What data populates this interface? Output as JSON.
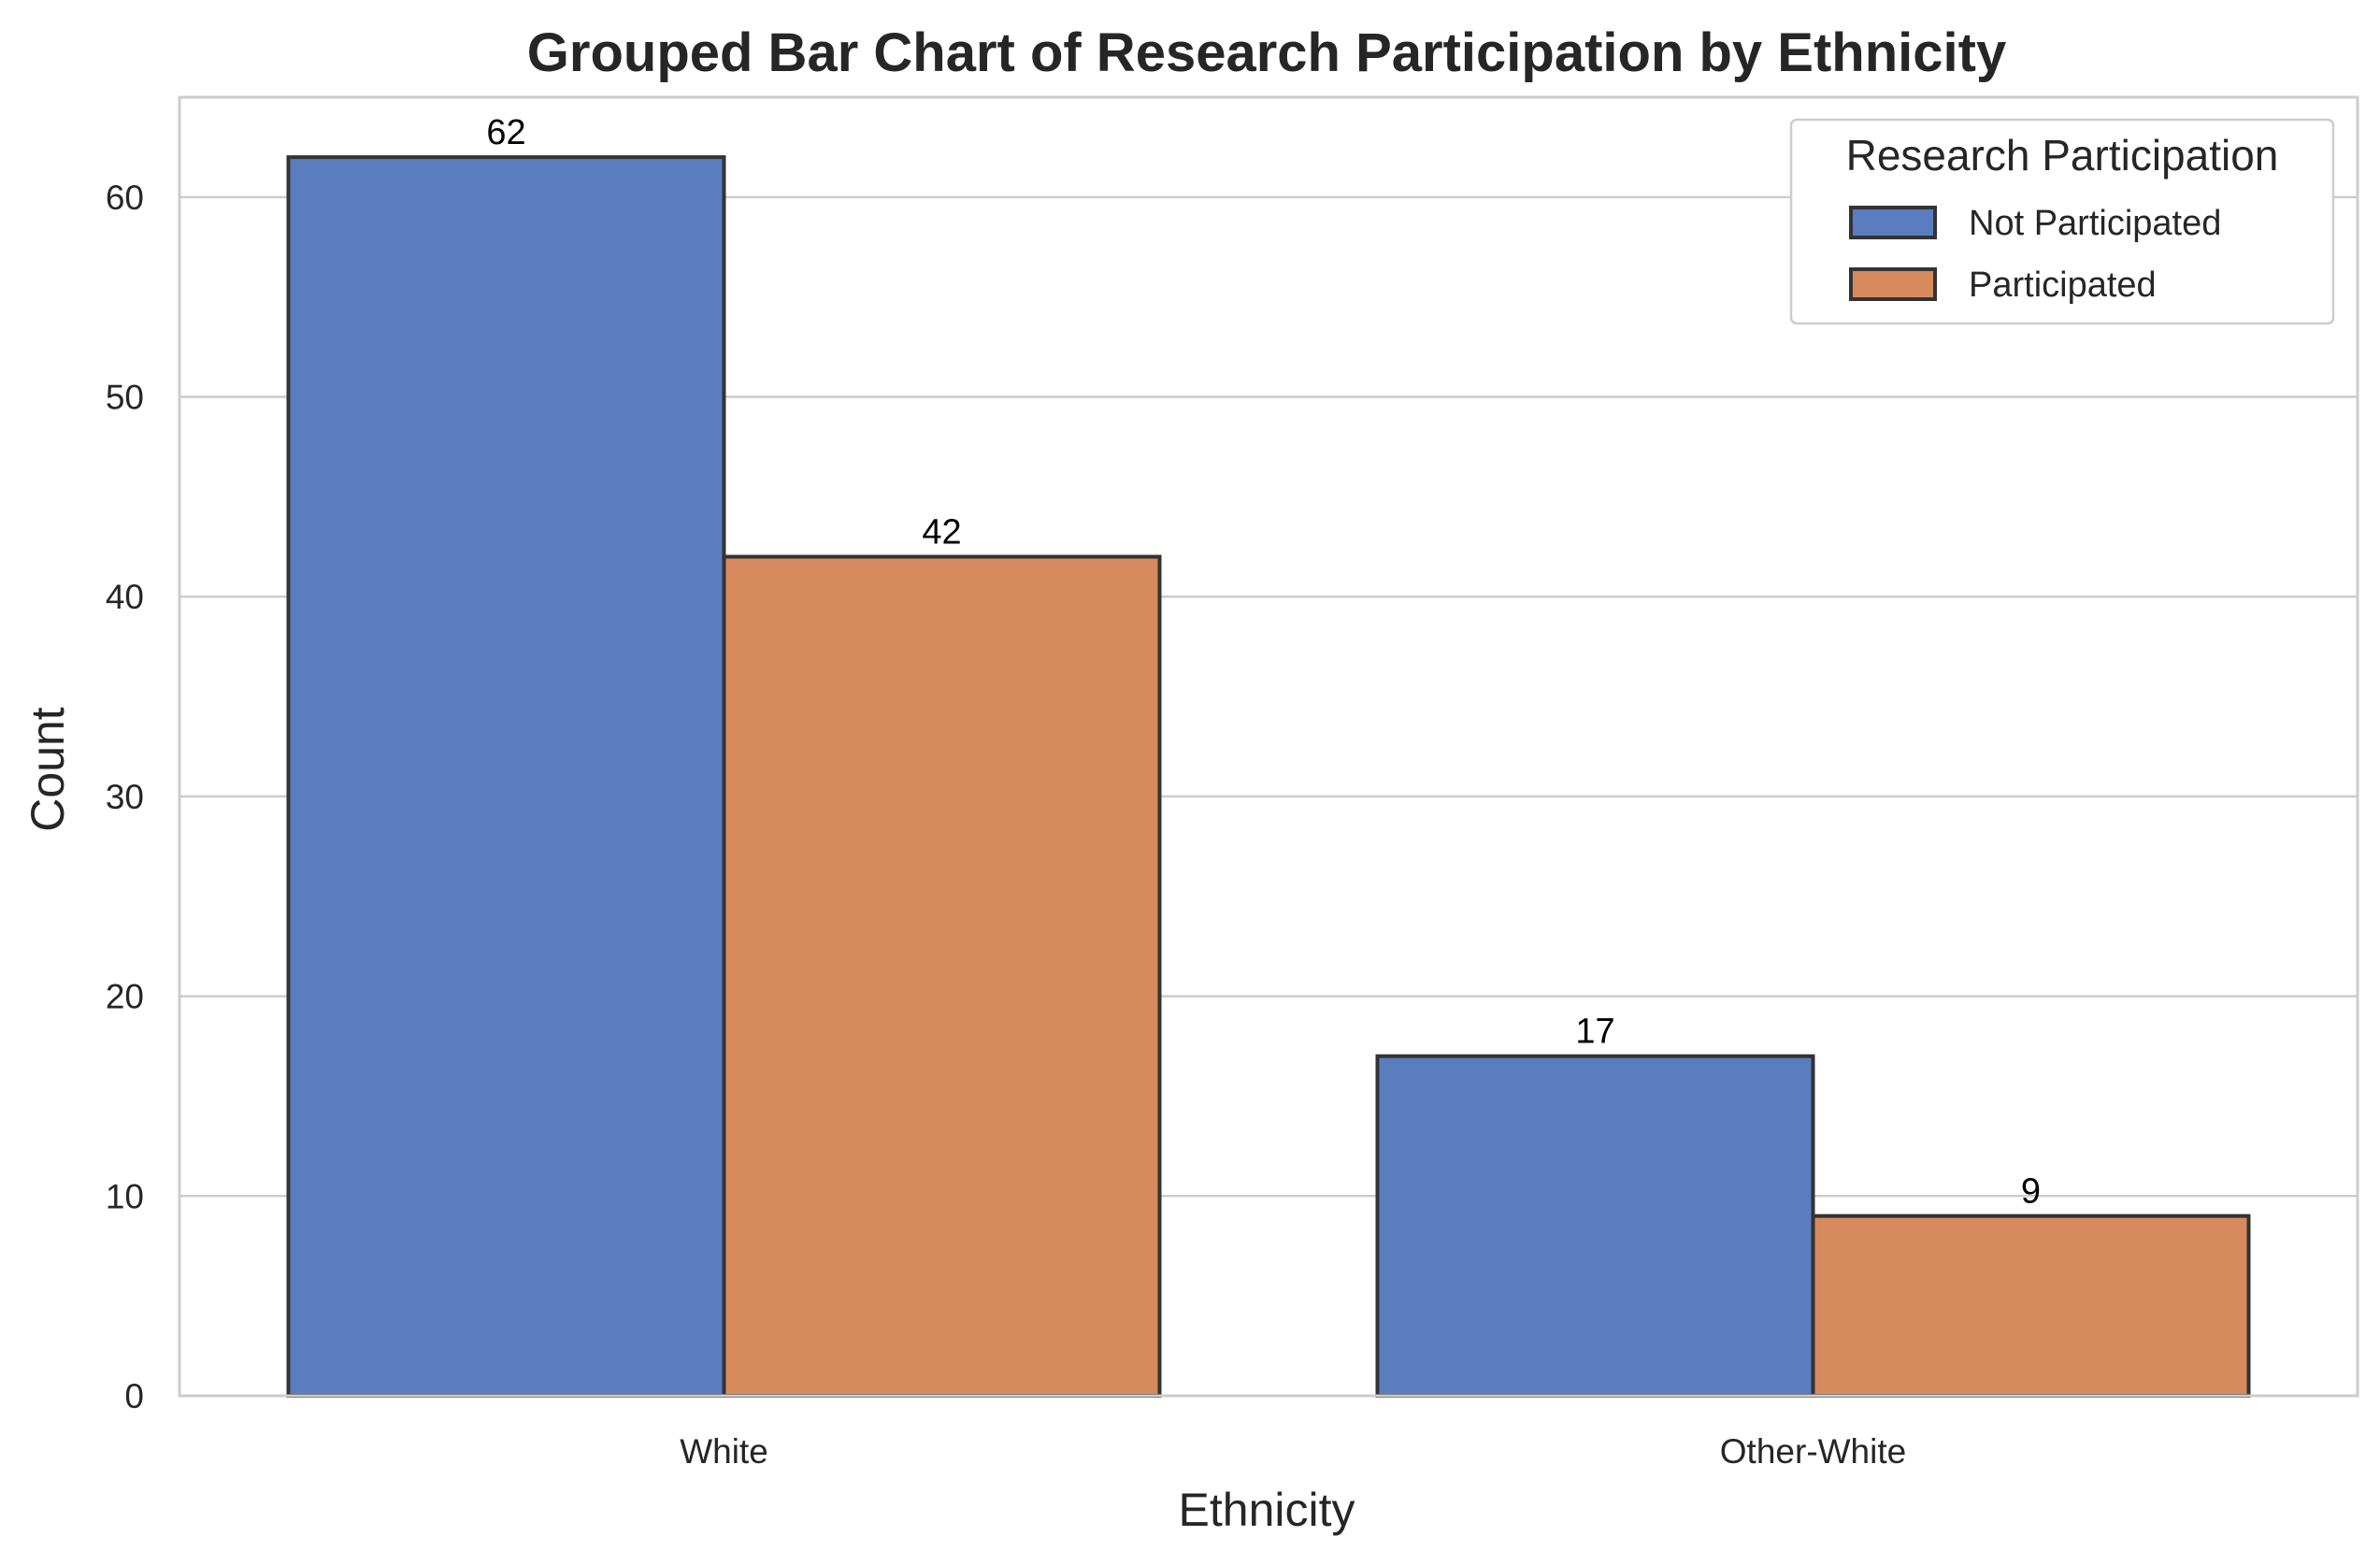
{
  "chart_data": {
    "type": "bar",
    "title": "Grouped Bar Chart of Research Participation by Ethnicity",
    "xlabel": "Ethnicity",
    "ylabel": "Count",
    "categories": [
      "White",
      "Other-White"
    ],
    "series": [
      {
        "name": "Not Participated",
        "values": [
          62,
          17
        ],
        "color": "#5a7dbf"
      },
      {
        "name": "Participated",
        "values": [
          42,
          9
        ],
        "color": "#d88a5f"
      }
    ],
    "ylim": [
      0,
      65
    ],
    "yticks": [
      0,
      10,
      20,
      30,
      40,
      50,
      60
    ],
    "grid": true,
    "legend": {
      "title": "Research Participation",
      "placement": "top-right"
    },
    "data_labels": true,
    "colors": {
      "edge": "#333333",
      "grid": "#cccccc",
      "frame": "#cccccc",
      "text": "#262626"
    }
  }
}
